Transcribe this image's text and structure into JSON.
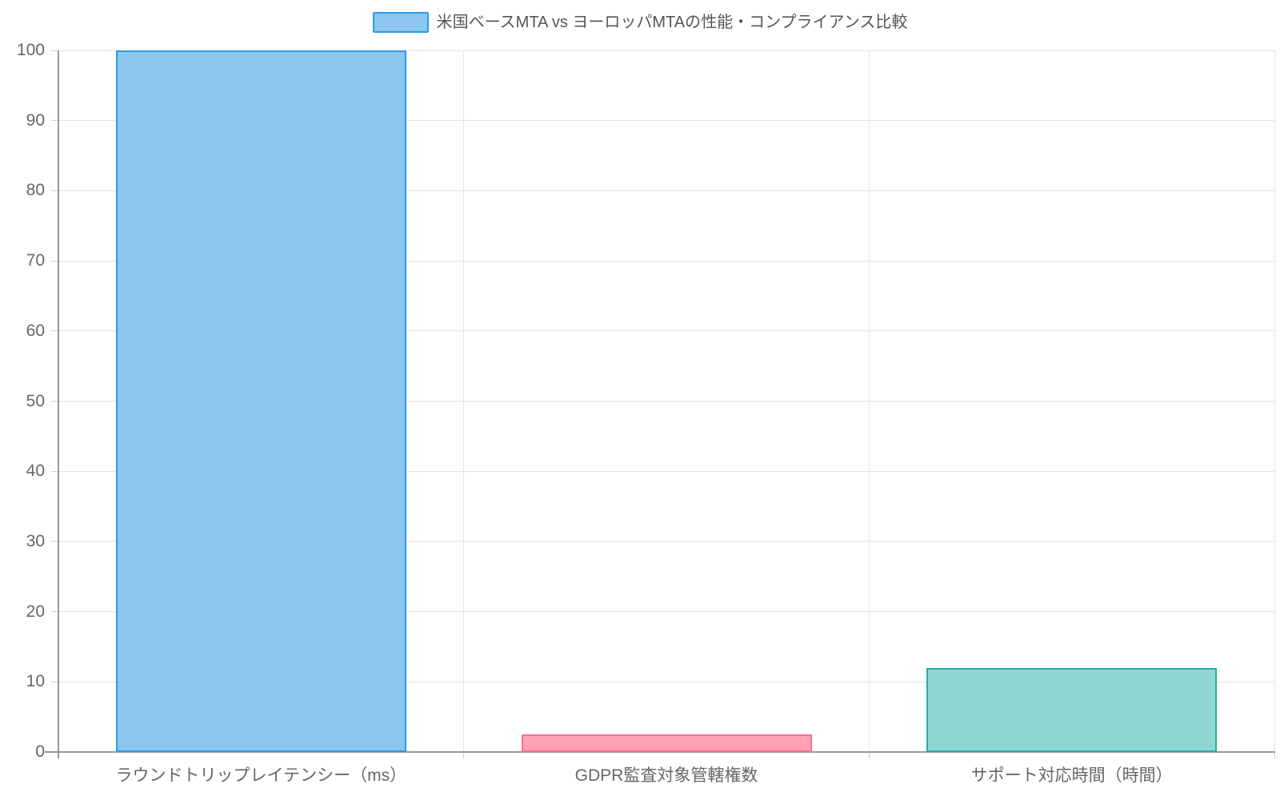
{
  "chart_data": {
    "type": "bar",
    "title": "米国ベースMTA vs ヨーロッパMTAの性能・コンプライアンス比較",
    "legend_entries": [
      "米国ベースMTA vs ヨーロッパMTAの性能・コンプライアンス比較"
    ],
    "legend_position": "top-center",
    "categories": [
      "ラウンドトリップレイテンシー（ms）",
      "GDPR監査対象管轄権数",
      "サポート対応時間（時間）"
    ],
    "values": [
      100,
      2.5,
      12
    ],
    "xlabel": "",
    "ylabel": "",
    "ylim": [
      0,
      100
    ],
    "ytick_step": 10,
    "y_ticks": [
      0,
      10,
      20,
      30,
      40,
      50,
      60,
      70,
      80,
      90,
      100
    ],
    "grid": true,
    "bar_styles": [
      {
        "fill": "#8AC6ED",
        "border": "#2D9BE2"
      },
      {
        "fill": "#FFA0B4",
        "border": "#F86E8E"
      },
      {
        "fill": "#8ED8D3",
        "border": "#2CACA4"
      }
    ],
    "style": {
      "background": "#FFFFFF",
      "axis_line_color": "#999999",
      "grid_line_color": "#E4E4E8",
      "tick_mark_color": "#CCCCCC",
      "tick_label_color": "#666666",
      "legend_text_color": "#555555",
      "legend_swatch_fill": "#8AC6ED",
      "legend_swatch_border": "#2D9BE2"
    }
  }
}
